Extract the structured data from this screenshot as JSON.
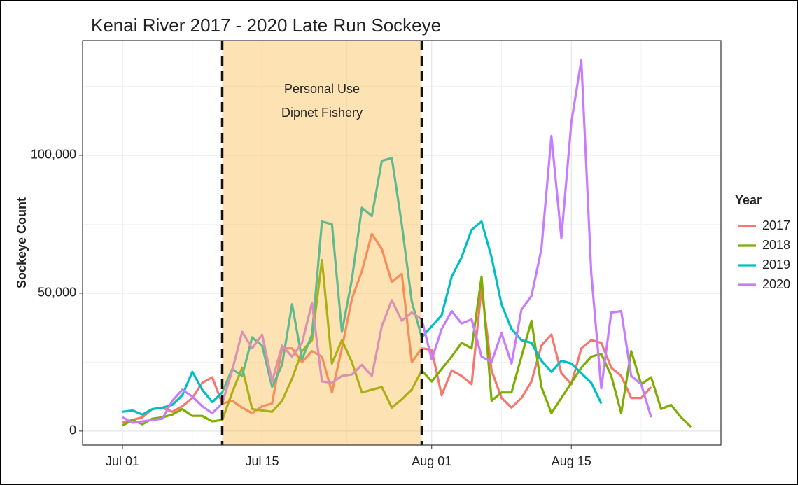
{
  "chart_data": {
    "type": "line",
    "title": "Kenai River 2017 - 2020 Late Run Sockeye",
    "y_label": "Sockeye Count",
    "legend_title": "Year",
    "legend": "right",
    "grid": true,
    "annotation": [
      "Personal Use",
      "Dipnet Fishery"
    ],
    "shade": {
      "from": "Jul 11",
      "to": "Jul 31",
      "color": "#fbb43a"
    },
    "x": [
      "Jul 01",
      "Jul 02",
      "Jul 03",
      "Jul 04",
      "Jul 05",
      "Jul 06",
      "Jul 07",
      "Jul 08",
      "Jul 09",
      "Jul 10",
      "Jul 11",
      "Jul 12",
      "Jul 13",
      "Jul 14",
      "Jul 15",
      "Jul 16",
      "Jul 17",
      "Jul 18",
      "Jul 19",
      "Jul 20",
      "Jul 21",
      "Jul 22",
      "Jul 23",
      "Jul 24",
      "Jul 25",
      "Jul 26",
      "Jul 27",
      "Jul 28",
      "Jul 29",
      "Jul 30",
      "Jul 31",
      "Aug 01",
      "Aug 02",
      "Aug 03",
      "Aug 04",
      "Aug 05",
      "Aug 06",
      "Aug 07",
      "Aug 08",
      "Aug 09",
      "Aug 10",
      "Aug 11",
      "Aug 12",
      "Aug 13",
      "Aug 14",
      "Aug 15",
      "Aug 16",
      "Aug 17",
      "Aug 18",
      "Aug 19",
      "Aug 20",
      "Aug 21",
      "Aug 22",
      "Aug 23",
      "Aug 24",
      "Aug 25",
      "Aug 26",
      "Aug 27"
    ],
    "xlim": [
      "Jun 27",
      "Aug 30"
    ],
    "xticks": [
      "Jul 01",
      "Jul 15",
      "Aug 01",
      "Aug 15"
    ],
    "ylim": [
      -5100,
      141600
    ],
    "yticks": [
      0,
      {
        "value": 50000,
        "label": "50,000"
      },
      {
        "value": 100000,
        "label": "100,000"
      }
    ],
    "series": [
      {
        "name": "2017",
        "color": "#F8766D",
        "values": [
          3000,
          4000,
          5000,
          8000,
          8500,
          7000,
          9000,
          12000,
          17500,
          19500,
          10000,
          11000,
          8500,
          6500,
          9000,
          10000,
          30000,
          30000,
          25000,
          29000,
          27000,
          14000,
          30000,
          48000,
          58000,
          71500,
          66000,
          54000,
          57000,
          25000,
          30000,
          29500,
          13000,
          22000,
          20000,
          17000,
          52000,
          22000,
          12000,
          8500,
          12000,
          18000,
          31000,
          35000,
          21000,
          17000,
          30000,
          33000,
          32000,
          23000,
          20000,
          12000,
          12000,
          16000,
          null,
          null,
          null,
          null
        ]
      },
      {
        "name": "2018",
        "color": "#7CAE00",
        "values": [
          2000,
          4000,
          2500,
          4500,
          5000,
          6000,
          8000,
          5500,
          5500,
          3500,
          4000,
          14000,
          23000,
          8000,
          7500,
          7000,
          11000,
          19000,
          29000,
          33000,
          62000,
          24500,
          33000,
          25000,
          14000,
          15000,
          16000,
          8500,
          11500,
          15000,
          22000,
          18000,
          22500,
          27000,
          32000,
          30000,
          56000,
          11000,
          14000,
          14000,
          27000,
          40000,
          16000,
          6500,
          12000,
          17500,
          23000,
          27000,
          28000,
          20000,
          6500,
          29000,
          17000,
          19500,
          8000,
          9500,
          5000,
          1500
        ]
      },
      {
        "name": "2019",
        "color": "#00BFC4",
        "values": [
          7000,
          7500,
          6000,
          8000,
          8500,
          9500,
          13000,
          21500,
          15000,
          10500,
          14000,
          22500,
          20000,
          34000,
          31000,
          16000,
          24000,
          46000,
          26000,
          35000,
          76000,
          75000,
          36000,
          55000,
          81000,
          78000,
          98000,
          99000,
          75000,
          47000,
          34000,
          38000,
          42000,
          56000,
          63000,
          73000,
          76000,
          63000,
          46000,
          37000,
          33000,
          32000,
          25500,
          21500,
          25500,
          24500,
          21000,
          17500,
          10000,
          null,
          null,
          null,
          null,
          null,
          null,
          null,
          null,
          null
        ]
      },
      {
        "name": "2020",
        "color": "#C77CFF",
        "values": [
          5000,
          3000,
          3500,
          4000,
          4500,
          11000,
          15000,
          12500,
          9000,
          6500,
          10000,
          22000,
          36000,
          30000,
          35000,
          18000,
          31000,
          27000,
          32000,
          46500,
          18000,
          17500,
          20000,
          20500,
          24000,
          20000,
          38000,
          47500,
          40000,
          43000,
          40500,
          26000,
          37000,
          43500,
          39000,
          40500,
          27000,
          25000,
          35500,
          24500,
          44000,
          49000,
          66000,
          107000,
          70000,
          112000,
          134500,
          57000,
          15500,
          43000,
          43500,
          20000,
          17000,
          5000,
          null,
          null,
          null,
          null
        ]
      }
    ]
  }
}
